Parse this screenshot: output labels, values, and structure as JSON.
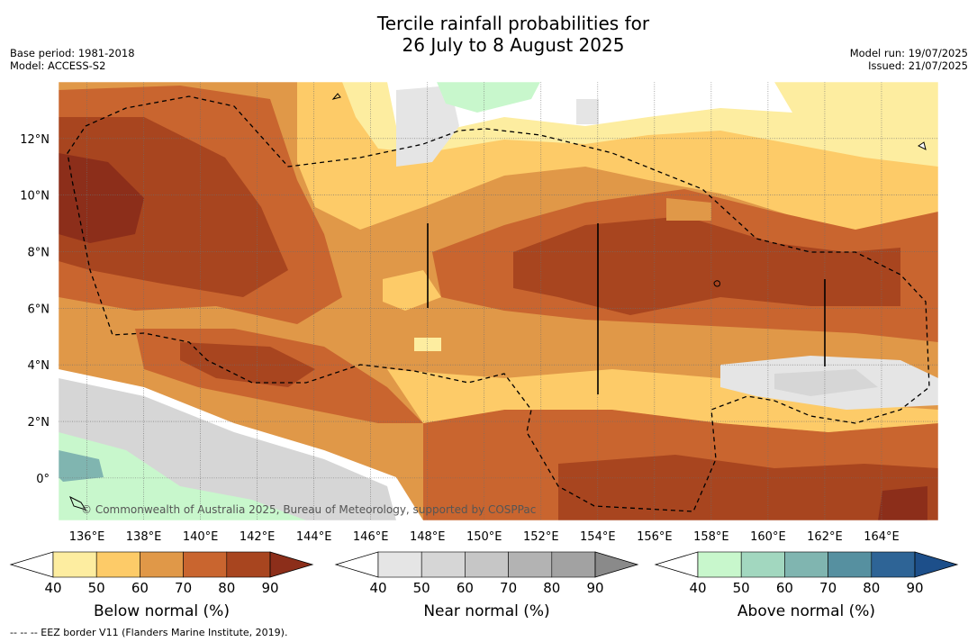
{
  "title": {
    "line1": "Tercile rainfall probabilities for",
    "line2": "26 July to 8 August 2025"
  },
  "meta": {
    "base_period": "Base period: 1981-2018",
    "model": "Model: ACCESS-S2",
    "model_run": "Model run: 19/07/2025",
    "issued": "Issued: 21/07/2025"
  },
  "map": {
    "lon_range": [
      135,
      166
    ],
    "lat_range": [
      -1.5,
      14
    ],
    "lon_ticks": [
      "136°E",
      "138°E",
      "140°E",
      "142°E",
      "144°E",
      "146°E",
      "148°E",
      "150°E",
      "152°E",
      "154°E",
      "156°E",
      "158°E",
      "160°E",
      "162°E",
      "164°E"
    ],
    "lat_ticks": [
      "12°N",
      "10°N",
      "8°N",
      "6°N",
      "4°N",
      "2°N",
      "0°"
    ],
    "copyright": "© Commonwealth of Australia 2025, Bureau of Meteorology, supported by COSPPac"
  },
  "colorbars": [
    {
      "label": "Below normal (%)",
      "ticks": [
        "40",
        "50",
        "60",
        "70",
        "80",
        "90"
      ],
      "colors": [
        "#ffffff",
        "#fdeda0",
        "#fdcb68",
        "#e09848",
        "#c9652f",
        "#a8451f",
        "#8c2e1a"
      ]
    },
    {
      "label": "Near normal (%)",
      "ticks": [
        "40",
        "50",
        "60",
        "70",
        "80",
        "90"
      ],
      "colors": [
        "#ffffff",
        "#e5e5e5",
        "#d6d6d6",
        "#c6c6c6",
        "#b3b3b3",
        "#a2a2a2",
        "#8a8a8a"
      ]
    },
    {
      "label": "Above normal (%)",
      "ticks": [
        "40",
        "50",
        "60",
        "70",
        "80",
        "90"
      ],
      "colors": [
        "#ffffff",
        "#c8f7cc",
        "#a2d7bf",
        "#80b5b0",
        "#5690a0",
        "#2e6496",
        "#1d4f8a"
      ]
    }
  ],
  "footnote": "--  --  -- EEZ border V11 (Flanders Marine Institute, 2019)."
}
